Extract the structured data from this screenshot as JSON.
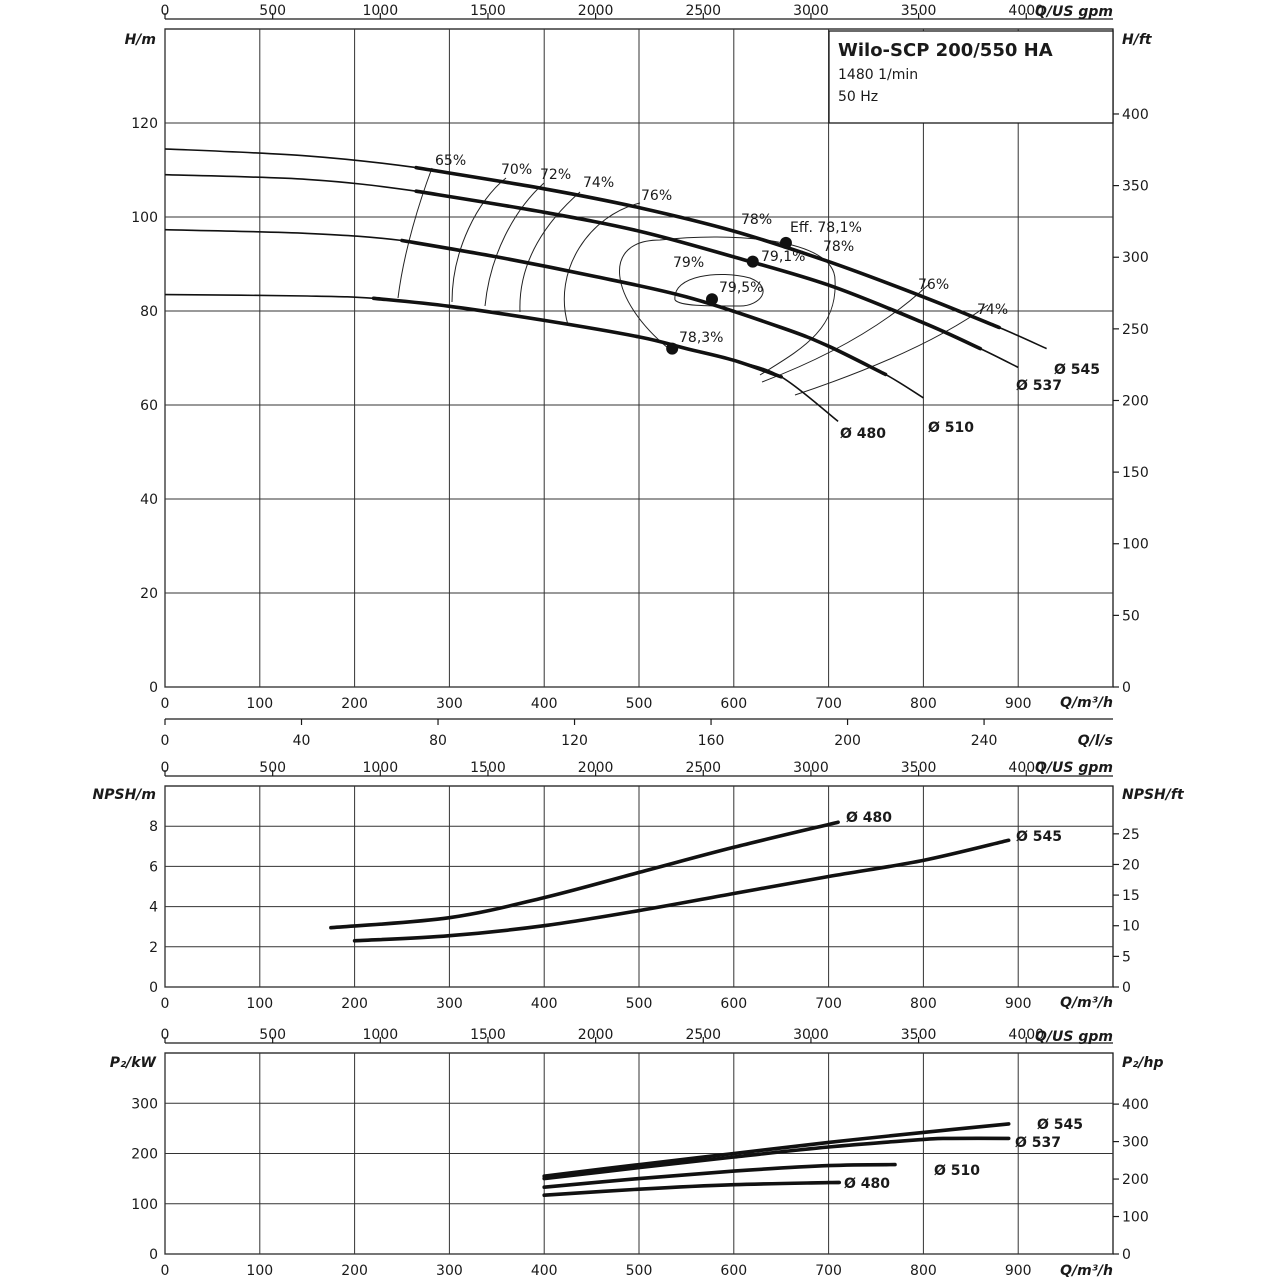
{
  "title_box": {
    "title": "Wilo-SCP 200/550 HA",
    "line1": "1480 1/min",
    "line2": "50 Hz"
  },
  "colors": {
    "curve": "#111111",
    "grid": "#333333",
    "background": "#ffffff"
  },
  "axes_text": {
    "q_usgpm": "Q/US gpm",
    "q_m3h": "Q/m³/h",
    "q_ls": "Q/l/s",
    "h_m": "H/m",
    "h_ft": "H/ft",
    "npsh_m": "NPSH/m",
    "npsh_ft": "NPSH/ft",
    "p2_kw": "P₂/kW",
    "p2_hp": "P₂/hp"
  },
  "chart_data": [
    {
      "id": "head",
      "type": "line",
      "x_unit": "Q/m³/h",
      "xlim": [
        0,
        1000
      ],
      "ylim": [
        0,
        140
      ],
      "ylabel": "H/m",
      "y2label": "H/ft",
      "x_ticks": [
        0,
        100,
        200,
        300,
        400,
        500,
        600,
        700,
        800,
        900
      ],
      "y_ticks": [
        0,
        20,
        40,
        60,
        80,
        100,
        120
      ],
      "y2_ticks": [
        0,
        50,
        100,
        150,
        200,
        250,
        300,
        350,
        400
      ],
      "top_ticks_usgpm": [
        0,
        500,
        1000,
        1500,
        2000,
        2500,
        3000,
        3500,
        4000
      ],
      "bottom_ticks_ls": [
        0,
        40,
        80,
        120,
        160,
        200,
        240
      ],
      "grid": true,
      "series": [
        {
          "name": "Ø 545",
          "x": [
            0,
            150,
            265,
            400,
            500,
            600,
            700,
            800,
            880,
            930
          ],
          "y": [
            114.5,
            113,
            110.5,
            106,
            102,
            97,
            90.5,
            83,
            76.5,
            72
          ]
        },
        {
          "name": "Ø 537",
          "x": [
            0,
            150,
            265,
            400,
            500,
            600,
            700,
            800,
            860,
            900
          ],
          "y": [
            109,
            108,
            105.5,
            101,
            97,
            91.5,
            85.5,
            77.5,
            72,
            68
          ]
        },
        {
          "name": "Ø 510",
          "x": [
            0,
            150,
            250,
            350,
            450,
            550,
            650,
            700,
            760,
            800
          ],
          "y": [
            97.3,
            96.5,
            95,
            91.5,
            87.5,
            83,
            76.5,
            72.5,
            66.5,
            61.5
          ]
        },
        {
          "name": "Ø 480",
          "x": [
            0,
            150,
            220,
            300,
            400,
            500,
            550,
            600,
            650,
            710
          ],
          "y": [
            83.5,
            83.2,
            82.7,
            81,
            78,
            74.5,
            72,
            69.5,
            66,
            56.5
          ]
        }
      ],
      "efficiency_labels": [
        "65%",
        "70%",
        "72%",
        "74%",
        "76%",
        "78%",
        "79%",
        "79,1%",
        "79,5%",
        "78,3%",
        "78%",
        "76%",
        "74%",
        "Eff. 78,1%"
      ],
      "bep_points": [
        {
          "x": 655,
          "y": 94.5,
          "label": "Eff. 78,1%"
        },
        {
          "x": 620,
          "y": 90.5,
          "label": "79,1%"
        },
        {
          "x": 577,
          "y": 82.5,
          "label": "79,5%"
        },
        {
          "x": 535,
          "y": 72,
          "label": "78,3%"
        }
      ]
    },
    {
      "id": "npsh",
      "type": "line",
      "x_unit": "Q/m³/h",
      "xlim": [
        0,
        1000
      ],
      "ylim": [
        0,
        10
      ],
      "ylabel": "NPSH/m",
      "y2label": "NPSH/ft",
      "x_ticks": [
        0,
        100,
        200,
        300,
        400,
        500,
        600,
        700,
        800,
        900
      ],
      "y_ticks": [
        0,
        2,
        4,
        6,
        8
      ],
      "y2_ticks": [
        0,
        5,
        10,
        15,
        20,
        25
      ],
      "top_ticks_usgpm": [
        0,
        500,
        1000,
        1500,
        2000,
        2500,
        3000,
        3500,
        4000
      ],
      "grid": true,
      "series": [
        {
          "name": "Ø 480",
          "x": [
            175,
            300,
            400,
            500,
            600,
            710
          ],
          "y": [
            2.95,
            3.45,
            4.45,
            5.7,
            6.95,
            8.2
          ]
        },
        {
          "name": "Ø 545",
          "x": [
            200,
            300,
            400,
            500,
            600,
            700,
            800,
            890
          ],
          "y": [
            2.3,
            2.55,
            3.05,
            3.8,
            4.65,
            5.5,
            6.3,
            7.3
          ]
        }
      ]
    },
    {
      "id": "power",
      "type": "line",
      "x_unit": "Q/m³/h",
      "xlim": [
        0,
        1000
      ],
      "ylim": [
        0,
        400
      ],
      "ylabel": "P₂/kW",
      "y2label": "P₂/hp",
      "x_ticks": [
        0,
        100,
        200,
        300,
        400,
        500,
        600,
        700,
        800,
        900
      ],
      "y_ticks": [
        0,
        100,
        200,
        300
      ],
      "y2_ticks": [
        0,
        100,
        200,
        300,
        400
      ],
      "top_ticks_usgpm": [
        0,
        500,
        1000,
        1500,
        2000,
        2500,
        3000,
        3500,
        4000
      ],
      "grid": true,
      "series": [
        {
          "name": "Ø 545",
          "x": [
            400,
            500,
            600,
            700,
            800,
            890
          ],
          "y": [
            155,
            178,
            200,
            222,
            242,
            259
          ]
        },
        {
          "name": "Ø 537",
          "x": [
            400,
            500,
            600,
            700,
            800,
            830,
            890
          ],
          "y": [
            150,
            172,
            193,
            213,
            228,
            230,
            230
          ]
        },
        {
          "name": "Ø 510",
          "x": [
            400,
            500,
            600,
            700,
            770
          ],
          "y": [
            133,
            150,
            165,
            176,
            178
          ]
        },
        {
          "name": "Ø 480",
          "x": [
            400,
            500,
            600,
            700,
            710
          ],
          "y": [
            117,
            129,
            138,
            142,
            142
          ]
        }
      ]
    }
  ]
}
